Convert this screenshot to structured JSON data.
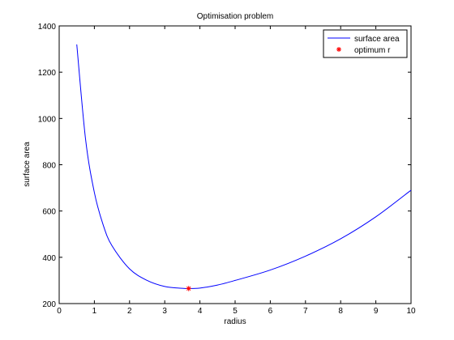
{
  "chart_data": {
    "type": "line",
    "title": "Optimisation problem",
    "xlabel": "radius",
    "ylabel": "surface area",
    "xlim": [
      0,
      10
    ],
    "ylim": [
      200,
      1400
    ],
    "xticks": [
      0,
      1,
      2,
      3,
      4,
      5,
      6,
      7,
      8,
      9,
      10
    ],
    "yticks": [
      200,
      400,
      600,
      800,
      1000,
      1200,
      1400
    ],
    "grid": false,
    "legend_position": "top-right",
    "series": [
      {
        "name": "surface area",
        "style": "line",
        "color": "#0000ff",
        "x": [
          0.5,
          0.75,
          1.0,
          1.25,
          1.5,
          2.0,
          2.5,
          3.0,
          3.5,
          3.68,
          4.0,
          4.5,
          5.0,
          6.0,
          7.0,
          8.0,
          9.0,
          10.0
        ],
        "y": [
          1320,
          910,
          680,
          540,
          450,
          350,
          300,
          274,
          266,
          265,
          267,
          280,
          300,
          345,
          405,
          480,
          575,
          690
        ]
      },
      {
        "name": "optimum r",
        "style": "marker",
        "marker": "*",
        "color": "#ff0000",
        "x": [
          3.68
        ],
        "y": [
          265
        ]
      }
    ]
  }
}
